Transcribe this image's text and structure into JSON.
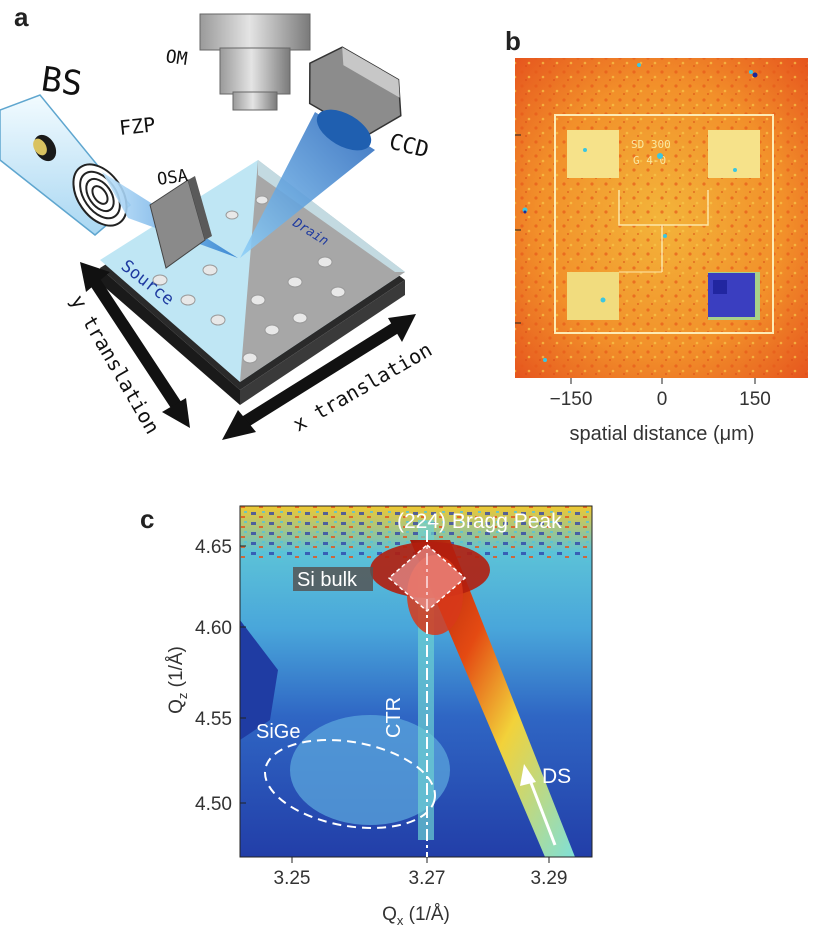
{
  "panels": {
    "a": {
      "letter": "a",
      "labels": {
        "bs": "BS",
        "om": "OM",
        "fzp": "FZP",
        "osa": "OSA",
        "ccd": "CCD",
        "drain": "Drain",
        "source": "Source",
        "y_translation": "y translation",
        "x_translation": "x translation"
      }
    },
    "b": {
      "letter": "b",
      "chip_text_1": "SD 300",
      "chip_text_2": "G 4-0",
      "x_ticks": [
        "−150",
        "0",
        "150"
      ],
      "xlabel": "spatial distance (μm)"
    },
    "c": {
      "letter": "c",
      "annotations": {
        "bragg": "(224) Bragg Peak",
        "si_bulk": "Si bulk",
        "ctr": "CTR",
        "sige": "SiGe",
        "ds": "DS"
      },
      "x_ticks": [
        "3.25",
        "3.27",
        "3.29"
      ],
      "y_ticks": [
        "4.65",
        "4.60",
        "4.55",
        "4.50"
      ],
      "xlabel_main": "Q",
      "xlabel_sub": "x",
      "xlabel_unit": " (1/Å)",
      "ylabel_main": "Q",
      "ylabel_sub": "z",
      "ylabel_unit": " (1/Å)"
    }
  },
  "colors": {
    "beam_blue": "#3a8fd8",
    "map_orange": "#f59a2a",
    "map_red": "#b41e0e",
    "map_blue": "#2a52b8",
    "cyan": "#3cc6e0"
  }
}
